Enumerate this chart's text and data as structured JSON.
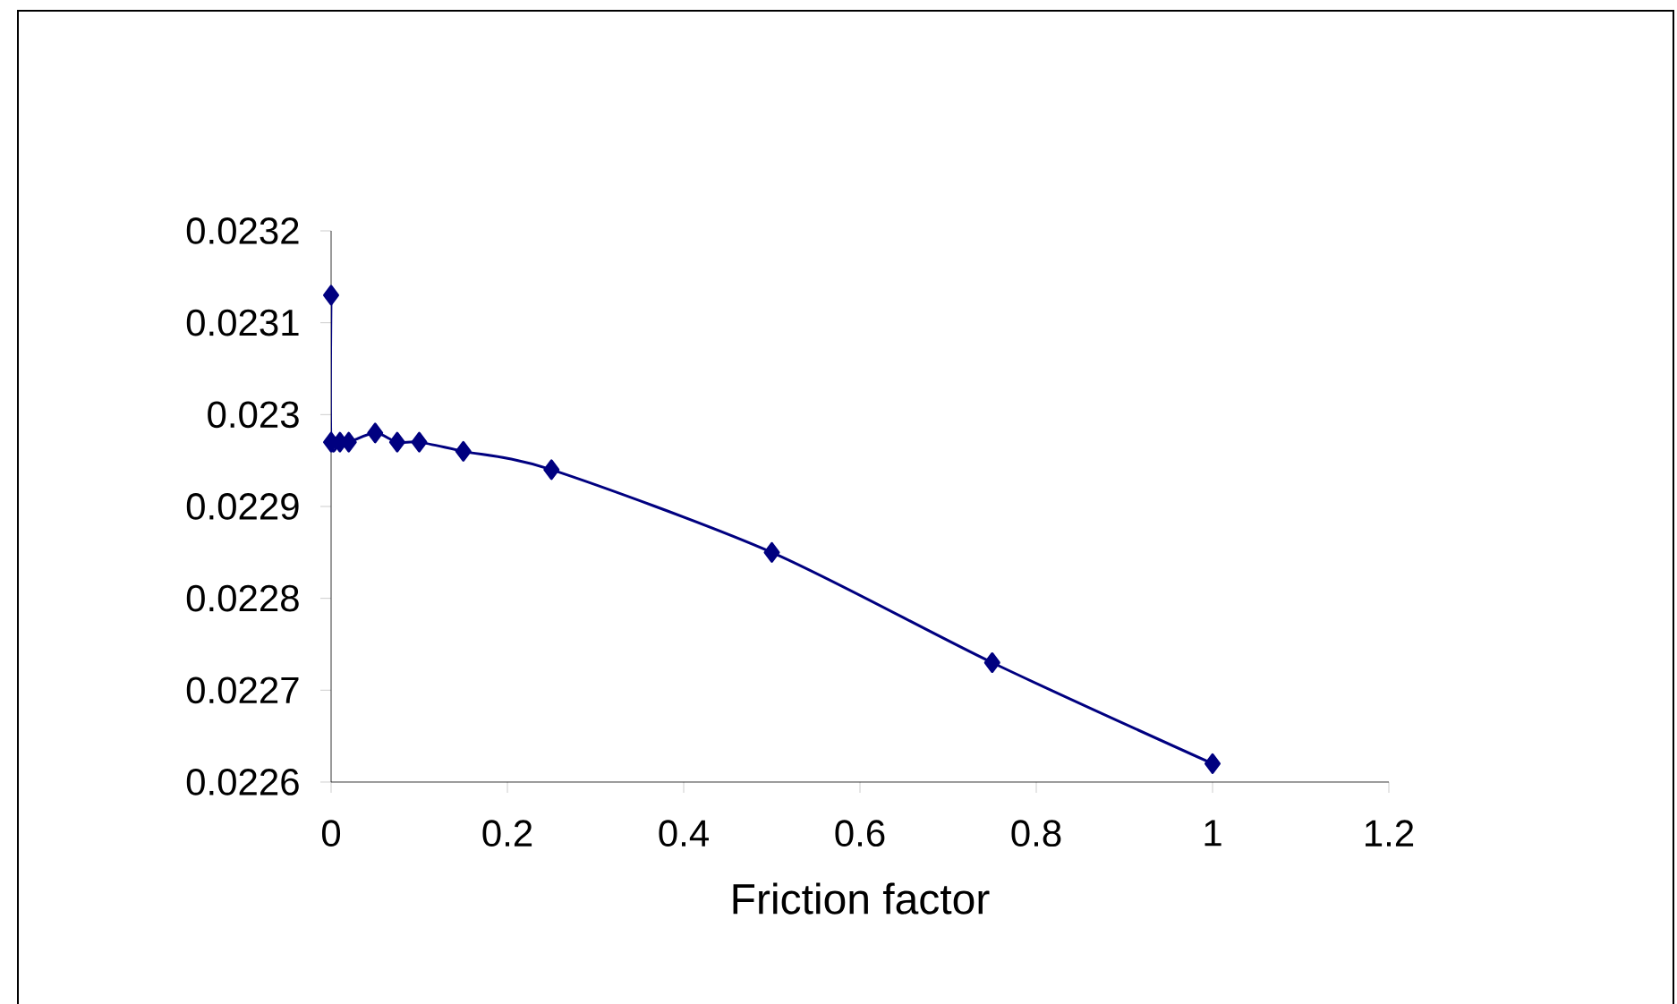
{
  "chart_data": {
    "type": "line",
    "xlabel": "Friction factor",
    "series": [
      {
        "color": "#000080",
        "x": [
          0,
          0,
          0.01,
          0.02,
          0.05,
          0.075,
          0.1,
          0.15,
          0.25,
          0.5,
          0.75,
          1
        ],
        "values": [
          0.02313,
          0.02297,
          0.02297,
          0.02297,
          0.02298,
          0.02297,
          0.02297,
          0.02296,
          0.02294,
          0.02285,
          0.02273,
          0.02262
        ]
      }
    ],
    "xlim": [
      0,
      1.2
    ],
    "xticks": [
      0,
      0.2,
      0.4,
      0.6,
      0.8,
      1,
      1.2
    ],
    "ylim": [
      0.0226,
      0.0232
    ],
    "yticks": [
      0.0226,
      0.0227,
      0.0228,
      0.0229,
      0.023,
      0.0231,
      0.0232
    ],
    "grid": false,
    "marker": "diamond",
    "line_style": "solid"
  }
}
